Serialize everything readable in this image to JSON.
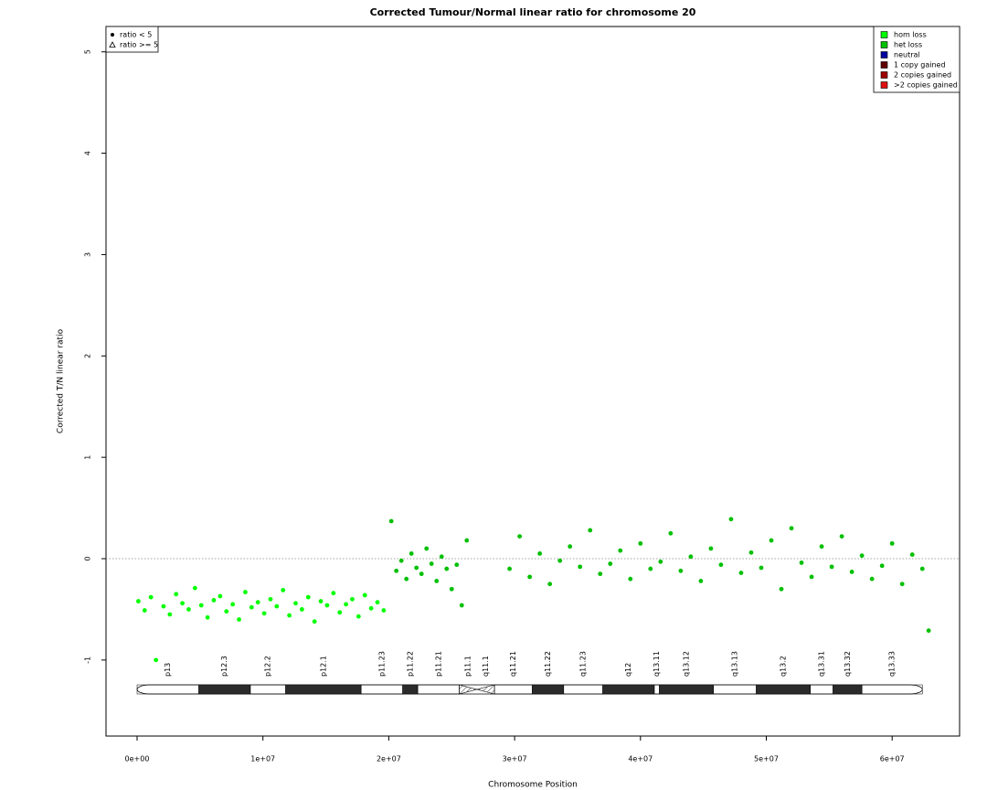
{
  "chart_data": {
    "type": "scatter",
    "title": "Corrected Tumour/Normal linear ratio for chromosome  20",
    "xlabel": "Chromosome Position",
    "ylabel": "Corrected T/N linear ratio",
    "xlim": [
      -2470000,
      65360000
    ],
    "ylim": [
      -1.75,
      5.25
    ],
    "xticks": [
      {
        "value": 0,
        "label": "0e+00"
      },
      {
        "value": 10000000,
        "label": "1e+07"
      },
      {
        "value": 20000000,
        "label": "2e+07"
      },
      {
        "value": 30000000,
        "label": "3e+07"
      },
      {
        "value": 40000000,
        "label": "4e+07"
      },
      {
        "value": 50000000,
        "label": "5e+07"
      },
      {
        "value": 60000000,
        "label": "6e+07"
      }
    ],
    "yticks": [
      -1,
      0,
      1,
      2,
      3,
      4,
      5
    ],
    "hline": 0,
    "legend": "upper right",
    "series": [
      {
        "name": "hom loss",
        "color": "#00ff00",
        "x": [
          100000,
          600000,
          1100000,
          1500000,
          2100000,
          2600000,
          3100000,
          3600000,
          4100000,
          4600000,
          5100000,
          5600000,
          6100000,
          6600000,
          7100000,
          7600000,
          8100000,
          8600000,
          9100000,
          9600000,
          10100000,
          10600000,
          11100000,
          11600000,
          12100000,
          12600000,
          13100000,
          13600000,
          14100000,
          14600000,
          15100000,
          15600000,
          16100000,
          16600000,
          17100000,
          17600000,
          18100000,
          18600000,
          19100000,
          19600000
        ],
        "values": [
          -0.42,
          -0.51,
          -0.38,
          -1.0,
          -0.47,
          -0.55,
          -0.35,
          -0.44,
          -0.5,
          -0.29,
          -0.46,
          -0.58,
          -0.41,
          -0.37,
          -0.52,
          -0.45,
          -0.6,
          -0.33,
          -0.48,
          -0.43,
          -0.54,
          -0.4,
          -0.47,
          -0.31,
          -0.56,
          -0.44,
          -0.5,
          -0.38,
          -0.62,
          -0.42,
          -0.46,
          -0.34,
          -0.53,
          -0.45,
          -0.4,
          -0.57,
          -0.36,
          -0.49,
          -0.43,
          -0.51
        ]
      },
      {
        "name": "het loss",
        "color": "#00c000",
        "x": [
          20200000,
          20600000,
          21000000,
          21400000,
          21800000,
          22200000,
          22600000,
          23000000,
          23400000,
          23800000,
          24200000,
          24600000,
          25000000,
          25400000,
          25800000,
          26200000,
          29600000,
          30400000,
          31200000,
          32000000,
          32800000,
          33600000,
          34400000,
          35200000,
          36000000,
          36800000,
          37600000,
          38400000,
          39200000,
          40000000,
          40800000,
          41600000,
          42400000,
          43200000,
          44000000,
          44800000,
          45600000,
          46400000,
          47200000,
          48000000,
          48800000,
          49600000,
          50400000,
          51200000,
          52000000,
          52800000,
          53600000,
          54400000,
          55200000,
          56000000,
          56800000,
          57600000,
          58400000,
          59200000,
          60000000,
          60800000,
          61600000,
          62400000,
          62900000
        ],
        "values": [
          0.37,
          -0.12,
          -0.02,
          -0.2,
          0.05,
          -0.09,
          -0.15,
          0.1,
          -0.05,
          -0.22,
          0.02,
          -0.1,
          -0.3,
          -0.06,
          -0.46,
          0.18,
          -0.1,
          0.22,
          -0.18,
          0.05,
          -0.25,
          -0.02,
          0.12,
          -0.08,
          0.28,
          -0.15,
          -0.05,
          0.08,
          -0.2,
          0.15,
          -0.1,
          -0.03,
          0.25,
          -0.12,
          0.02,
          -0.22,
          0.1,
          -0.06,
          0.39,
          -0.14,
          0.06,
          -0.09,
          0.18,
          -0.3,
          0.3,
          -0.04,
          -0.18,
          0.12,
          -0.08,
          0.22,
          -0.13,
          0.03,
          -0.2,
          -0.07,
          0.15,
          -0.25,
          0.04,
          -0.1,
          -0.71
        ]
      },
      {
        "name": "neutral",
        "color": "#0000a0",
        "x": [],
        "values": []
      },
      {
        "name": "1 copy gained",
        "color": "#600000",
        "x": [],
        "values": []
      },
      {
        "name": "2 copies gained",
        "color": "#a00000",
        "x": [],
        "values": []
      },
      {
        "name": ">2 copies gained",
        "color": "#e01010",
        "x": [],
        "values": []
      }
    ],
    "shape_legend": {
      "position": "upper left",
      "items": [
        "ratio < 5",
        "ratio >= 5"
      ]
    },
    "ideogram": [
      {
        "name": "p13",
        "start": 0,
        "end": 4900000,
        "stain": "gneg"
      },
      {
        "name": "p12.3",
        "start": 4900000,
        "end": 9000000,
        "stain": "gpos"
      },
      {
        "name": "p12.2",
        "start": 9000000,
        "end": 11800000,
        "stain": "gneg"
      },
      {
        "name": "p12.1",
        "start": 11800000,
        "end": 17800000,
        "stain": "gpos"
      },
      {
        "name": "p11.23",
        "start": 17800000,
        "end": 21100000,
        "stain": "gneg"
      },
      {
        "name": "p11.22",
        "start": 21100000,
        "end": 22300000,
        "stain": "gpos"
      },
      {
        "name": "p11.21",
        "start": 22300000,
        "end": 25600000,
        "stain": "gneg"
      },
      {
        "name": "p11.1",
        "start": 25600000,
        "end": 27000000,
        "stain": "acen"
      },
      {
        "name": "q11.1",
        "start": 27000000,
        "end": 28400000,
        "stain": "acen"
      },
      {
        "name": "q11.21",
        "start": 28400000,
        "end": 31400000,
        "stain": "gneg"
      },
      {
        "name": "q11.22",
        "start": 31400000,
        "end": 33900000,
        "stain": "gpos"
      },
      {
        "name": "q11.23",
        "start": 33900000,
        "end": 37000000,
        "stain": "gneg"
      },
      {
        "name": "q12",
        "start": 37000000,
        "end": 41100000,
        "stain": "gpos"
      },
      {
        "name": "q13.11",
        "start": 41100000,
        "end": 41500000,
        "stain": "gneg"
      },
      {
        "name": "q13.12",
        "start": 41500000,
        "end": 45800000,
        "stain": "gpos"
      },
      {
        "name": "q13.13",
        "start": 45800000,
        "end": 49200000,
        "stain": "gneg"
      },
      {
        "name": "q13.2",
        "start": 49200000,
        "end": 53500000,
        "stain": "gpos"
      },
      {
        "name": "q13.31",
        "start": 53500000,
        "end": 55300000,
        "stain": "gneg"
      },
      {
        "name": "q13.32",
        "start": 55300000,
        "end": 57600000,
        "stain": "gpos"
      },
      {
        "name": "q13.33",
        "start": 57600000,
        "end": 62400000,
        "stain": "gneg"
      }
    ]
  }
}
